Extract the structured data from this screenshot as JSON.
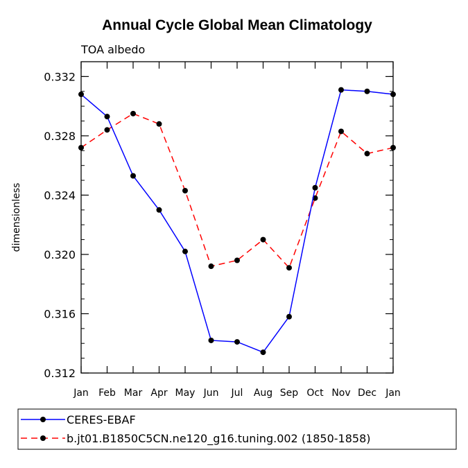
{
  "chart_data": {
    "type": "line",
    "title": "Annual Cycle Global Mean Climatology",
    "subtitle": "TOA albedo",
    "xlabel": "",
    "ylabel": "dimensionless",
    "categories": [
      "Jan",
      "Feb",
      "Mar",
      "Apr",
      "May",
      "Jun",
      "Jul",
      "Aug",
      "Sep",
      "Oct",
      "Nov",
      "Dec",
      "Jan"
    ],
    "ylim": [
      0.312,
      0.333
    ],
    "yticks": [
      0.312,
      0.316,
      0.32,
      0.324,
      0.328,
      0.332
    ],
    "ytick_labels": [
      "0.312",
      "0.316",
      "0.320",
      "0.324",
      "0.328",
      "0.332"
    ],
    "yminor_step": 0.001,
    "grid": false,
    "legend_position": "bottom",
    "series": [
      {
        "name": "CERES-EBAF",
        "color": "#0000ff",
        "style": "solid",
        "values": [
          0.3308,
          0.3293,
          0.3253,
          0.323,
          0.3202,
          0.3142,
          0.3141,
          0.3134,
          0.3158,
          0.3245,
          0.3311,
          0.331,
          0.3308
        ]
      },
      {
        "name": "b.jt01.B1850C5CN.ne120_g16.tuning.002 (1850-1858)",
        "color": "#ff0000",
        "style": "dashed",
        "values": [
          0.3272,
          0.3284,
          0.3295,
          0.3288,
          0.3243,
          0.3192,
          0.3196,
          0.321,
          0.3191,
          0.3238,
          0.3283,
          0.3268,
          0.3272
        ]
      }
    ]
  }
}
